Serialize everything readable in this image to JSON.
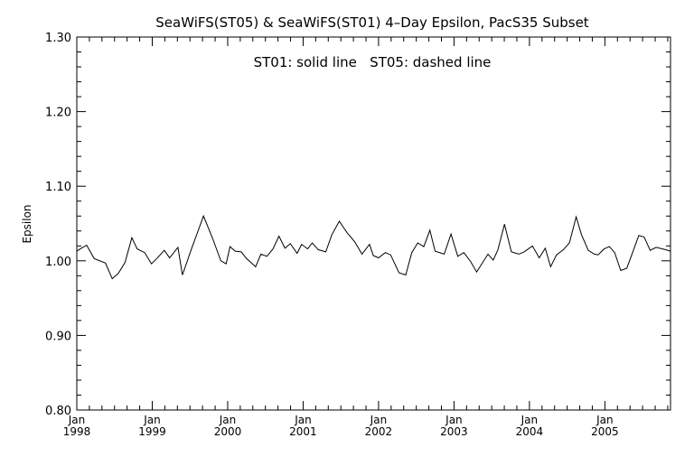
{
  "chart_data": {
    "type": "line",
    "title": "SeaWiFS(ST05) & SeaWiFS(ST01) 4–Day Epsilon, PacS35 Subset",
    "annotation": "ST01: solid line   ST05: dashed line",
    "xlabel": "",
    "ylabel": "Epsilon",
    "ylim": [
      0.8,
      1.3
    ],
    "yticks": [
      "0.80",
      "0.90",
      "1.00",
      "1.10",
      "1.20",
      "1.30"
    ],
    "xlim": [
      1998.0,
      2005.87
    ],
    "xticks": [
      {
        "top": "Jan",
        "bottom": "1998",
        "x": 1998
      },
      {
        "top": "Jan",
        "bottom": "1999",
        "x": 1999
      },
      {
        "top": "Jan",
        "bottom": "2000",
        "x": 2000
      },
      {
        "top": "Jan",
        "bottom": "2001",
        "x": 2001
      },
      {
        "top": "Jan",
        "bottom": "2002",
        "x": 2002
      },
      {
        "top": "Jan",
        "bottom": "2003",
        "x": 2003
      },
      {
        "top": "Jan",
        "bottom": "2004",
        "x": 2004
      },
      {
        "top": "Jan",
        "bottom": "2005",
        "x": 2005
      }
    ],
    "grid": false,
    "series": [
      {
        "name": "ST01",
        "style": "solid",
        "color": "#000000",
        "x": [
          1998.0,
          1998.06,
          1998.13,
          1998.23,
          1998.38,
          1998.47,
          1998.55,
          1998.64,
          1998.73,
          1998.8,
          1998.9,
          1998.99,
          1999.06,
          1999.16,
          1999.23,
          1999.34,
          1999.4,
          1999.52,
          1999.68,
          1999.8,
          1999.91,
          1999.98,
          2000.03,
          2000.1,
          2000.18,
          2000.25,
          2000.37,
          2000.44,
          2000.52,
          2000.6,
          2000.68,
          2000.76,
          2000.83,
          2000.92,
          2000.98,
          2001.06,
          2001.12,
          2001.2,
          2001.3,
          2001.38,
          2001.48,
          2001.58,
          2001.68,
          2001.78,
          2001.88,
          2001.93,
          2002.0,
          2002.09,
          2002.16,
          2002.27,
          2002.36,
          2002.44,
          2002.52,
          2002.6,
          2002.68,
          2002.75,
          2002.87,
          2002.96,
          2003.05,
          2003.13,
          2003.22,
          2003.3,
          2003.45,
          2003.52,
          2003.58,
          2003.67,
          2003.76,
          2003.86,
          2003.93,
          2004.04,
          2004.13,
          2004.21,
          2004.28,
          2004.36,
          2004.45,
          2004.53,
          2004.62,
          2004.69,
          2004.78,
          2004.86,
          2004.91,
          2004.99,
          2005.06,
          2005.13,
          2005.21,
          2005.29,
          2005.37,
          2005.45,
          2005.52,
          2005.6,
          2005.68,
          2005.8,
          2005.87
        ],
        "y": [
          1.013,
          1.017,
          1.021,
          1.003,
          0.997,
          0.976,
          0.983,
          0.998,
          1.031,
          1.016,
          1.011,
          0.996,
          1.003,
          1.014,
          1.004,
          1.018,
          0.981,
          1.016,
          1.06,
          1.03,
          1.0,
          0.996,
          1.019,
          1.013,
          1.012,
          1.003,
          0.992,
          1.009,
          1.006,
          1.016,
          1.033,
          1.017,
          1.023,
          1.01,
          1.022,
          1.016,
          1.024,
          1.015,
          1.012,
          1.035,
          1.053,
          1.038,
          1.026,
          1.009,
          1.022,
          1.007,
          1.004,
          1.011,
          1.008,
          0.984,
          0.981,
          1.011,
          1.024,
          1.019,
          1.041,
          1.013,
          1.009,
          1.036,
          1.006,
          1.011,
          0.999,
          0.985,
          1.009,
          1.001,
          1.014,
          1.049,
          1.012,
          1.009,
          1.012,
          1.02,
          1.004,
          1.017,
          0.992,
          1.008,
          1.015,
          1.024,
          1.059,
          1.035,
          1.014,
          1.009,
          1.008,
          1.016,
          1.019,
          1.011,
          0.987,
          0.99,
          1.012,
          1.034,
          1.032,
          1.014,
          1.018,
          1.015,
          1.013
        ]
      }
    ]
  }
}
